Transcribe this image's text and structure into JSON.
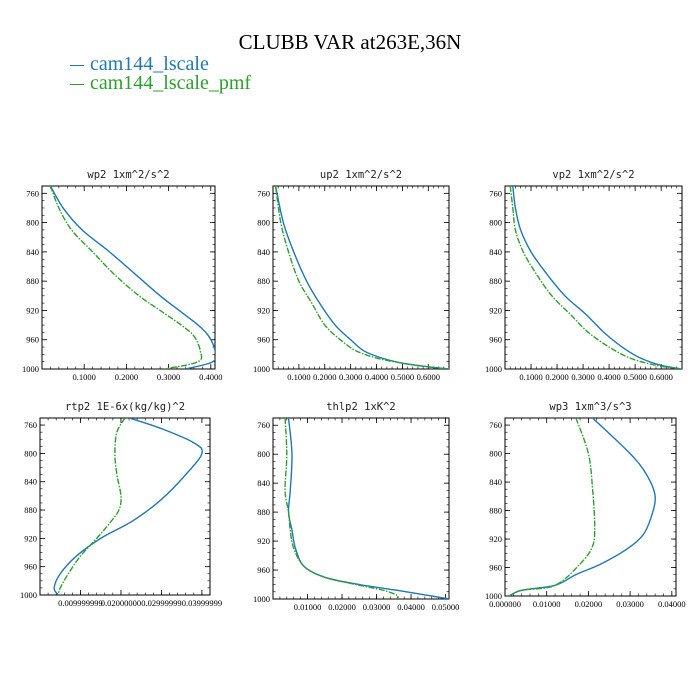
{
  "figure": {
    "title": "CLUBB VAR at263E,36N",
    "legend": [
      {
        "label": "cam144_lscale",
        "color": "#1f77b4",
        "style": "solid"
      },
      {
        "label": "cam144_lscale_pmf",
        "color": "#2ca02c",
        "style": "dashdot"
      }
    ]
  },
  "chart_data": [
    {
      "type": "line",
      "title": "wp2",
      "units": "1xm^2/s^2",
      "xlim": [
        0,
        0.41
      ],
      "ylim": [
        1000,
        750
      ],
      "y_reversed": true,
      "xticks": [
        0.1,
        0.2,
        0.3,
        0.4
      ],
      "xtick_labels": [
        "0.1000",
        "0.2000",
        "0.3000",
        "0.4000"
      ],
      "yticks": [
        760,
        800,
        840,
        880,
        920,
        960,
        1000
      ],
      "series": [
        {
          "name": "cam144_lscale",
          "x": [
            0.02,
            0.05,
            0.095,
            0.16,
            0.22,
            0.28,
            0.325,
            0.37,
            0.395,
            0.41,
            0.405,
            0.34
          ],
          "y": [
            750,
            780,
            810,
            840,
            870,
            900,
            920,
            940,
            955,
            975,
            990,
            1000
          ]
        },
        {
          "name": "cam144_lscale_pmf",
          "x": [
            0.02,
            0.04,
            0.07,
            0.12,
            0.17,
            0.23,
            0.28,
            0.33,
            0.36,
            0.375,
            0.37,
            0.29
          ],
          "y": [
            750,
            780,
            810,
            840,
            870,
            900,
            920,
            940,
            955,
            975,
            990,
            1000
          ]
        }
      ]
    },
    {
      "type": "line",
      "title": "up2",
      "units": "1xm^2/s^2",
      "xlim": [
        0,
        0.68
      ],
      "ylim": [
        1000,
        750
      ],
      "y_reversed": true,
      "xticks": [
        0.1,
        0.2,
        0.3,
        0.4,
        0.5,
        0.6
      ],
      "xtick_labels": [
        "0.1000",
        "0.2000",
        "0.3000",
        "0.4000",
        "0.5000",
        "0.6000"
      ],
      "yticks": [
        760,
        800,
        840,
        880,
        920,
        960,
        1000
      ],
      "series": [
        {
          "name": "cam144_lscale",
          "x": [
            0.01,
            0.04,
            0.08,
            0.13,
            0.18,
            0.24,
            0.3,
            0.35,
            0.42,
            0.5,
            0.6,
            0.68
          ],
          "y": [
            750,
            800,
            840,
            880,
            910,
            940,
            960,
            975,
            985,
            992,
            997,
            1000
          ]
        },
        {
          "name": "cam144_lscale_pmf",
          "x": [
            0.01,
            0.03,
            0.06,
            0.1,
            0.15,
            0.2,
            0.26,
            0.32,
            0.4,
            0.5,
            0.6,
            0.68
          ],
          "y": [
            750,
            800,
            840,
            880,
            910,
            940,
            960,
            975,
            985,
            992,
            997,
            1000
          ]
        }
      ]
    },
    {
      "type": "line",
      "title": "vp2",
      "units": "1xm^2/s^2",
      "xlim": [
        0,
        0.68
      ],
      "ylim": [
        1000,
        750
      ],
      "y_reversed": true,
      "xticks": [
        0.1,
        0.2,
        0.3,
        0.4,
        0.5,
        0.6
      ],
      "xtick_labels": [
        "0.1000",
        "0.2000",
        "0.3000",
        "0.4000",
        "0.5000",
        "0.6000"
      ],
      "yticks": [
        760,
        800,
        840,
        880,
        920,
        960,
        1000
      ],
      "series": [
        {
          "name": "cam144_lscale",
          "x": [
            0.03,
            0.04,
            0.06,
            0.1,
            0.16,
            0.23,
            0.31,
            0.38,
            0.45,
            0.52,
            0.6,
            0.68
          ],
          "y": [
            750,
            780,
            810,
            840,
            870,
            900,
            925,
            950,
            970,
            985,
            995,
            1000
          ]
        },
        {
          "name": "cam144_lscale_pmf",
          "x": [
            0.02,
            0.03,
            0.04,
            0.07,
            0.12,
            0.18,
            0.25,
            0.32,
            0.4,
            0.48,
            0.58,
            0.68
          ],
          "y": [
            750,
            780,
            810,
            840,
            870,
            900,
            925,
            950,
            970,
            985,
            995,
            1000
          ]
        }
      ]
    },
    {
      "type": "line",
      "title": "rtp2",
      "units": "1E-6x(kg/kg)^2",
      "xlim": [
        0,
        0.042
      ],
      "ylim": [
        1000,
        750
      ],
      "y_reversed": true,
      "xticks": [
        0.01,
        0.02,
        0.03,
        0.04
      ],
      "xtick_labels": [
        "0.009999999",
        "0.02000000",
        "0.02999999",
        "0.03999999"
      ],
      "yticks": [
        760,
        800,
        840,
        880,
        920,
        960,
        1000
      ],
      "series": [
        {
          "name": "cam144_lscale",
          "x": [
            0.022,
            0.03,
            0.038,
            0.04,
            0.036,
            0.03,
            0.023,
            0.015,
            0.009,
            0.005,
            0.0035,
            0.0045
          ],
          "y": [
            750,
            765,
            785,
            800,
            830,
            865,
            895,
            920,
            945,
            970,
            990,
            1000
          ]
        },
        {
          "name": "cam144_lscale_pmf",
          "x": [
            0.021,
            0.019,
            0.0185,
            0.019,
            0.02,
            0.0195,
            0.017,
            0.014,
            0.01,
            0.007,
            0.005,
            0.0045
          ],
          "y": [
            750,
            770,
            800,
            830,
            860,
            880,
            900,
            920,
            945,
            970,
            990,
            1000
          ]
        }
      ]
    },
    {
      "type": "line",
      "title": "thlp2",
      "units": "1xK^2",
      "xlim": [
        0,
        0.051
      ],
      "ylim": [
        1000,
        750
      ],
      "y_reversed": true,
      "xticks": [
        0.01,
        0.02,
        0.03,
        0.04,
        0.05
      ],
      "xtick_labels": [
        "0.01000",
        "0.02000",
        "0.03000",
        "0.04000",
        "0.05000"
      ],
      "yticks": [
        760,
        800,
        840,
        880,
        920,
        960,
        1000
      ],
      "series": [
        {
          "name": "cam144_lscale",
          "x": [
            0.0045,
            0.0055,
            0.005,
            0.0045,
            0.0055,
            0.0065,
            0.009,
            0.015,
            0.025,
            0.036,
            0.045,
            0.051
          ],
          "y": [
            750,
            800,
            850,
            880,
            905,
            930,
            955,
            970,
            980,
            988,
            995,
            1000
          ]
        },
        {
          "name": "cam144_lscale_pmf",
          "x": [
            0.0035,
            0.004,
            0.0035,
            0.0045,
            0.005,
            0.006,
            0.009,
            0.015,
            0.024,
            0.032,
            0.036,
            0.036
          ],
          "y": [
            750,
            800,
            850,
            880,
            905,
            930,
            955,
            970,
            980,
            988,
            995,
            1000
          ]
        }
      ]
    },
    {
      "type": "line",
      "title": "wp3",
      "units": "1xm^3/s^3",
      "xlim": [
        0,
        0.041
      ],
      "ylim": [
        1000,
        750
      ],
      "y_reversed": true,
      "xticks": [
        0,
        0.01,
        0.02,
        0.03,
        0.04
      ],
      "xtick_labels": [
        "0.000000",
        "0.01000",
        "0.02000",
        "0.03000",
        "0.04000"
      ],
      "yticks": [
        760,
        800,
        840,
        880,
        920,
        960,
        1000
      ],
      "series": [
        {
          "name": "cam144_lscale",
          "x": [
            0.021,
            0.03,
            0.034,
            0.036,
            0.035,
            0.033,
            0.029,
            0.023,
            0.017,
            0.012,
            0.004,
            0.001
          ],
          "y": [
            750,
            800,
            830,
            860,
            890,
            915,
            935,
            955,
            970,
            985,
            992,
            1000
          ]
        },
        {
          "name": "cam144_lscale_pmf",
          "x": [
            0.017,
            0.02,
            0.021,
            0.0215,
            0.021,
            0.018,
            0.012,
            0.004,
            0.001
          ],
          "y": [
            750,
            800,
            850,
            900,
            930,
            955,
            985,
            992,
            1000
          ]
        }
      ]
    }
  ]
}
